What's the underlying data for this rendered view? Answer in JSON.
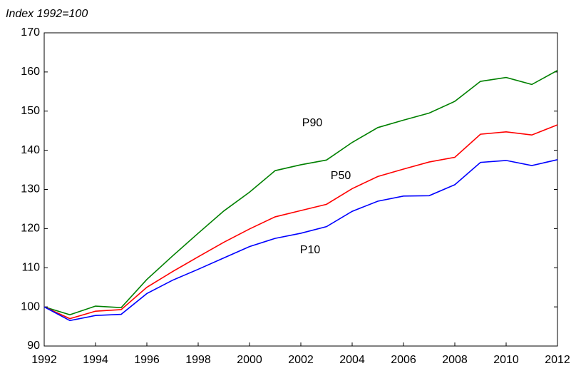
{
  "chart_data": {
    "type": "line",
    "title": "Index 1992=100",
    "x": [
      1992,
      1993,
      1994,
      1995,
      1996,
      1997,
      1998,
      1999,
      2000,
      2001,
      2002,
      2003,
      2004,
      2005,
      2006,
      2007,
      2008,
      2009,
      2010,
      2011,
      2012
    ],
    "series": [
      {
        "name": "P90",
        "color": "#008000",
        "values": [
          100,
          98,
          100.2,
          99.8,
          107,
          113,
          118.8,
          124.5,
          129.3,
          134.8,
          136.3,
          137.5,
          142,
          145.8,
          147.7,
          149.5,
          152.5,
          157.6,
          158.6,
          156.8,
          160.4
        ]
      },
      {
        "name": "P50",
        "color": "#ff0000",
        "values": [
          100,
          97,
          98.9,
          99.3,
          105,
          109,
          112.8,
          116.5,
          119.9,
          123,
          124.6,
          126.2,
          130.2,
          133.3,
          135.2,
          137,
          138.2,
          144.1,
          144.7,
          143.9,
          146.5
        ]
      },
      {
        "name": "P10",
        "color": "#0000ff",
        "values": [
          100,
          96.5,
          97.8,
          98.1,
          103.4,
          106.8,
          109.6,
          112.5,
          115.4,
          117.5,
          118.8,
          120.5,
          124.4,
          127,
          128.3,
          128.4,
          131.2,
          136.9,
          137.4,
          136.1,
          137.6
        ]
      }
    ],
    "xlim": [
      1992,
      2012
    ],
    "xticks": [
      1992,
      1994,
      1996,
      1998,
      2000,
      2002,
      2004,
      2006,
      2008,
      2010,
      2012
    ],
    "ylim": [
      90,
      170
    ],
    "yticks": [
      90,
      100,
      110,
      120,
      130,
      140,
      150,
      160,
      170
    ],
    "grid": false
  }
}
